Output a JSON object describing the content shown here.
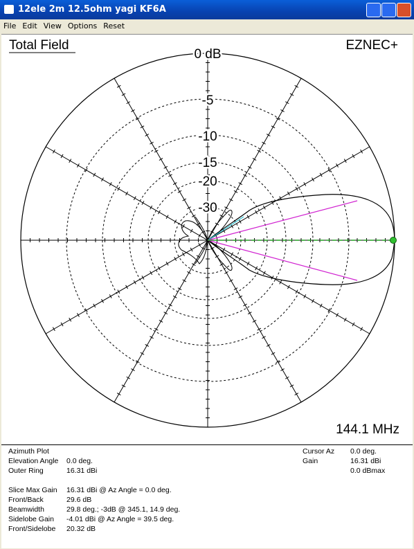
{
  "window": {
    "title": "12ele 2m 12.5ohm yagi KF6A"
  },
  "menu": [
    "File",
    "Edit",
    "View",
    "Options",
    "Reset"
  ],
  "plot": {
    "title": "Total Field",
    "brand": "EZNEC+",
    "frequency": "144.1 MHz",
    "ring_labels": [
      "0 dB",
      "-5",
      "-10",
      "-15",
      "-20",
      "-30"
    ]
  },
  "info": {
    "left": [
      {
        "label": "Azimuth Plot"
      },
      {
        "label": "Elevation Angle",
        "value": "0.0 deg."
      },
      {
        "label": "Outer Ring",
        "value": "16.31 dBi"
      },
      {
        "label": "Slice Max Gain",
        "value": "16.31 dBi @ Az Angle = 0.0 deg."
      },
      {
        "label": "Front/Back",
        "value": "29.6 dB"
      },
      {
        "label": "Beamwidth",
        "value": "29.8 deg.; -3dB @ 345.1, 14.9 deg."
      },
      {
        "label": "Sidelobe Gain",
        "value": "-4.01 dBi @ Az Angle = 39.5 deg."
      },
      {
        "label": "Front/Sidelobe",
        "value": "20.32 dB"
      }
    ],
    "right": [
      {
        "label": "Cursor Az",
        "value": "0.0 deg."
      },
      {
        "label": "Gain",
        "value": "16.31 dBi"
      },
      {
        "value": "0.0 dBmax"
      }
    ]
  }
}
